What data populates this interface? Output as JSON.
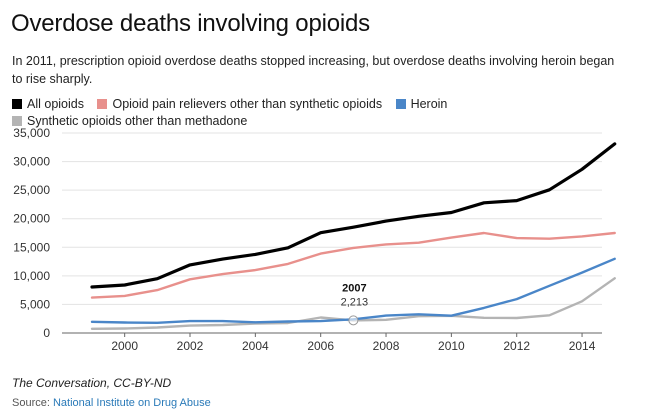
{
  "header": {
    "title": "Overdose deaths involving opioids",
    "subtitle": "In 2011, prescription opioid overdose deaths stopped increasing, but overdose deaths involving heroin began to rise sharply."
  },
  "footer": {
    "credit": "The Conversation, CC-BY-ND",
    "source_prefix": "Source: ",
    "source_link": "National Institute on Drug Abuse"
  },
  "chart_data": {
    "type": "line",
    "title": "Overdose deaths involving opioids",
    "xlabel": "",
    "ylabel": "",
    "xlim": [
      1999,
      2015
    ],
    "ylim": [
      0,
      35000
    ],
    "grid": true,
    "legend_position": "top-left",
    "x": [
      1999,
      2000,
      2001,
      2002,
      2003,
      2004,
      2005,
      2006,
      2007,
      2008,
      2009,
      2010,
      2011,
      2012,
      2013,
      2014,
      2015
    ],
    "x_ticks": [
      2000,
      2002,
      2004,
      2006,
      2008,
      2010,
      2012,
      2014
    ],
    "x_tick_labels": [
      "2000",
      "2002",
      "2004",
      "2006",
      "2008",
      "2010",
      "2012",
      "2014"
    ],
    "y_ticks": [
      0,
      5000,
      10000,
      15000,
      20000,
      25000,
      30000,
      35000
    ],
    "y_tick_labels": [
      "0",
      "5,000",
      "10,000",
      "15,000",
      "20,000",
      "25,000",
      "30,000",
      "35,000"
    ],
    "series": [
      {
        "name": "All opioids",
        "color": "#000000",
        "values": [
          8050,
          8407,
          9496,
          11920,
          12940,
          13756,
          14918,
          17545,
          18516,
          19582,
          20422,
          21089,
          22784,
          23166,
          25052,
          28647,
          33091
        ]
      },
      {
        "name": "Opioid pain relievers other than synthetic opioids",
        "color": "#e8908c",
        "values": [
          6200,
          6500,
          7500,
          9400,
          10300,
          11000,
          12100,
          13900,
          14900,
          15500,
          15800,
          16700,
          17500,
          16600,
          16500,
          16900,
          17500
        ]
      },
      {
        "name": "Heroin",
        "color": "#4a86c8",
        "values": [
          1960,
          1842,
          1779,
          2089,
          2080,
          1878,
          2009,
          2088,
          2399,
          3041,
          3278,
          3036,
          4397,
          5925,
          8257,
          10574,
          12989
        ]
      },
      {
        "name": "Synthetic opioids other than methadone",
        "color": "#b4b4b4",
        "values": [
          730,
          782,
          957,
          1295,
          1400,
          1664,
          1742,
          2707,
          2213,
          2306,
          2946,
          3007,
          2666,
          2628,
          3105,
          5544,
          9580
        ]
      }
    ],
    "annotation": {
      "year_label": "2007",
      "value_label": "2,213",
      "x": 2007,
      "y": 2213,
      "series": "Synthetic opioids other than methadone"
    }
  }
}
